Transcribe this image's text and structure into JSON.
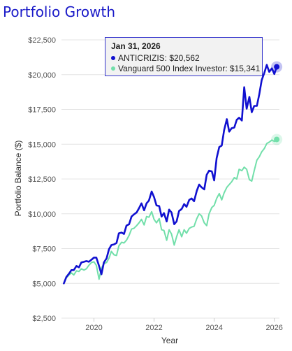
{
  "title": "Portfolio Growth",
  "tooltip": {
    "date": "Jan 31, 2026",
    "rows": [
      {
        "series": "ANTICRIZIS",
        "value": "$20,562",
        "text": "ANTICRIZIS: $20,562",
        "color": "#1010d0"
      },
      {
        "series": "Vanguard 500 Index Investor",
        "value": "$15,341",
        "text": "Vanguard 500 Index Investor: $15,341",
        "color": "#72dfaa"
      }
    ]
  },
  "chart_data": {
    "type": "line",
    "title": "Portfolio Growth",
    "xlabel": "Year",
    "ylabel": "Portfolio Balance ($)",
    "xlim": [
      2018.92,
      2026.17
    ],
    "ylim": [
      2500,
      22500
    ],
    "x_ticks": [
      2020,
      2022,
      2024,
      2026
    ],
    "x_tick_labels": [
      "2020",
      "2022",
      "2024",
      "2026"
    ],
    "y_ticks": [
      2500,
      5000,
      7500,
      10000,
      12500,
      15000,
      17500,
      20000,
      22500
    ],
    "y_tick_labels": [
      "$2,500",
      "$5,000",
      "$7,500",
      "$10,000",
      "$12,500",
      "$15,000",
      "$17,500",
      "$20,000",
      "$22,500"
    ],
    "grid": true,
    "series": [
      {
        "name": "ANTICRIZIS",
        "color": "#1010d0",
        "points": [
          [
            2019.0,
            5000
          ],
          [
            2019.08,
            5450
          ],
          [
            2019.17,
            5700
          ],
          [
            2019.25,
            5950
          ],
          [
            2019.33,
            5950
          ],
          [
            2019.42,
            6250
          ],
          [
            2019.5,
            6150
          ],
          [
            2019.58,
            6500
          ],
          [
            2019.67,
            6550
          ],
          [
            2019.75,
            6600
          ],
          [
            2019.83,
            6550
          ],
          [
            2019.92,
            6700
          ],
          [
            2020.0,
            6850
          ],
          [
            2020.08,
            6850
          ],
          [
            2020.17,
            6250
          ],
          [
            2020.25,
            5650
          ],
          [
            2020.33,
            6500
          ],
          [
            2020.42,
            6800
          ],
          [
            2020.5,
            7450
          ],
          [
            2020.58,
            7750
          ],
          [
            2020.67,
            7800
          ],
          [
            2020.75,
            7900
          ],
          [
            2020.83,
            8600
          ],
          [
            2020.92,
            8650
          ],
          [
            2021.0,
            8550
          ],
          [
            2021.08,
            9150
          ],
          [
            2021.17,
            9250
          ],
          [
            2021.25,
            9800
          ],
          [
            2021.33,
            9950
          ],
          [
            2021.42,
            10100
          ],
          [
            2021.5,
            10400
          ],
          [
            2021.58,
            10750
          ],
          [
            2021.67,
            10250
          ],
          [
            2021.75,
            10750
          ],
          [
            2021.83,
            10950
          ],
          [
            2021.92,
            11600
          ],
          [
            2022.0,
            11200
          ],
          [
            2022.08,
            10600
          ],
          [
            2022.17,
            10550
          ],
          [
            2022.25,
            9800
          ],
          [
            2022.33,
            10050
          ],
          [
            2022.42,
            9450
          ],
          [
            2022.5,
            10300
          ],
          [
            2022.58,
            10100
          ],
          [
            2022.67,
            9250
          ],
          [
            2022.75,
            9450
          ],
          [
            2022.83,
            10200
          ],
          [
            2022.92,
            10350
          ],
          [
            2023.0,
            10700
          ],
          [
            2023.08,
            10500
          ],
          [
            2023.17,
            11000
          ],
          [
            2023.25,
            11100
          ],
          [
            2023.33,
            10900
          ],
          [
            2023.42,
            11650
          ],
          [
            2023.5,
            12100
          ],
          [
            2023.58,
            11900
          ],
          [
            2023.67,
            11750
          ],
          [
            2023.75,
            12800
          ],
          [
            2023.83,
            13100
          ],
          [
            2023.92,
            13050
          ],
          [
            2024.0,
            12400
          ],
          [
            2024.08,
            14000
          ],
          [
            2024.17,
            14800
          ],
          [
            2024.25,
            14900
          ],
          [
            2024.33,
            16000
          ],
          [
            2024.42,
            16800
          ],
          [
            2024.5,
            15900
          ],
          [
            2024.58,
            16150
          ],
          [
            2024.67,
            16200
          ],
          [
            2024.75,
            16750
          ],
          [
            2024.83,
            16900
          ],
          [
            2024.92,
            16700
          ],
          [
            2025.0,
            19100
          ],
          [
            2025.08,
            17550
          ],
          [
            2025.17,
            18400
          ],
          [
            2025.25,
            17300
          ],
          [
            2025.33,
            17750
          ],
          [
            2025.42,
            17750
          ],
          [
            2025.5,
            18600
          ],
          [
            2025.58,
            19600
          ],
          [
            2025.67,
            20150
          ],
          [
            2025.75,
            20700
          ],
          [
            2025.83,
            20200
          ],
          [
            2025.92,
            20450
          ],
          [
            2026.0,
            20050
          ],
          [
            2026.08,
            20562
          ]
        ]
      },
      {
        "name": "Vanguard 500 Index Investor",
        "color": "#72dfaa",
        "points": [
          [
            2019.0,
            5000
          ],
          [
            2019.08,
            5400
          ],
          [
            2019.17,
            5600
          ],
          [
            2019.25,
            5750
          ],
          [
            2019.33,
            5600
          ],
          [
            2019.42,
            5900
          ],
          [
            2019.5,
            5850
          ],
          [
            2019.58,
            6050
          ],
          [
            2019.67,
            5950
          ],
          [
            2019.75,
            6050
          ],
          [
            2019.83,
            6300
          ],
          [
            2019.92,
            6500
          ],
          [
            2020.0,
            6550
          ],
          [
            2020.08,
            6300
          ],
          [
            2020.17,
            5300
          ],
          [
            2020.25,
            6100
          ],
          [
            2020.33,
            6400
          ],
          [
            2020.42,
            6500
          ],
          [
            2020.5,
            6800
          ],
          [
            2020.58,
            7300
          ],
          [
            2020.67,
            7050
          ],
          [
            2020.75,
            7000
          ],
          [
            2020.83,
            7700
          ],
          [
            2020.92,
            7950
          ],
          [
            2021.0,
            7900
          ],
          [
            2021.08,
            8100
          ],
          [
            2021.17,
            8450
          ],
          [
            2021.25,
            8900
          ],
          [
            2021.33,
            8950
          ],
          [
            2021.42,
            9150
          ],
          [
            2021.5,
            9350
          ],
          [
            2021.58,
            9600
          ],
          [
            2021.67,
            9200
          ],
          [
            2021.75,
            9800
          ],
          [
            2021.83,
            9750
          ],
          [
            2021.92,
            10150
          ],
          [
            2022.0,
            9600
          ],
          [
            2022.08,
            9350
          ],
          [
            2022.17,
            9650
          ],
          [
            2022.25,
            8850
          ],
          [
            2022.33,
            8800
          ],
          [
            2022.42,
            8100
          ],
          [
            2022.5,
            8850
          ],
          [
            2022.58,
            8550
          ],
          [
            2022.67,
            7750
          ],
          [
            2022.75,
            8350
          ],
          [
            2022.83,
            8850
          ],
          [
            2022.92,
            8350
          ],
          [
            2023.0,
            8850
          ],
          [
            2023.08,
            8600
          ],
          [
            2023.17,
            8950
          ],
          [
            2023.25,
            9050
          ],
          [
            2023.33,
            9100
          ],
          [
            2023.42,
            9650
          ],
          [
            2023.5,
            10000
          ],
          [
            2023.58,
            9850
          ],
          [
            2023.67,
            9350
          ],
          [
            2023.75,
            9150
          ],
          [
            2023.83,
            10000
          ],
          [
            2023.92,
            10450
          ],
          [
            2024.0,
            10600
          ],
          [
            2024.08,
            11100
          ],
          [
            2024.17,
            11450
          ],
          [
            2024.25,
            11000
          ],
          [
            2024.33,
            11500
          ],
          [
            2024.42,
            11900
          ],
          [
            2024.5,
            12100
          ],
          [
            2024.58,
            12300
          ],
          [
            2024.67,
            12600
          ],
          [
            2024.75,
            12500
          ],
          [
            2024.83,
            13200
          ],
          [
            2024.92,
            13100
          ],
          [
            2025.0,
            13350
          ],
          [
            2025.08,
            13200
          ],
          [
            2025.17,
            12450
          ],
          [
            2025.25,
            12350
          ],
          [
            2025.33,
            13100
          ],
          [
            2025.42,
            13850
          ],
          [
            2025.5,
            14100
          ],
          [
            2025.58,
            14450
          ],
          [
            2025.67,
            14700
          ],
          [
            2025.75,
            15050
          ],
          [
            2025.83,
            15150
          ],
          [
            2025.92,
            15300
          ],
          [
            2026.0,
            15200
          ],
          [
            2026.08,
            15341
          ]
        ]
      }
    ],
    "highlight": {
      "x": 2026.08,
      "label": "Jan 31, 2026"
    }
  }
}
